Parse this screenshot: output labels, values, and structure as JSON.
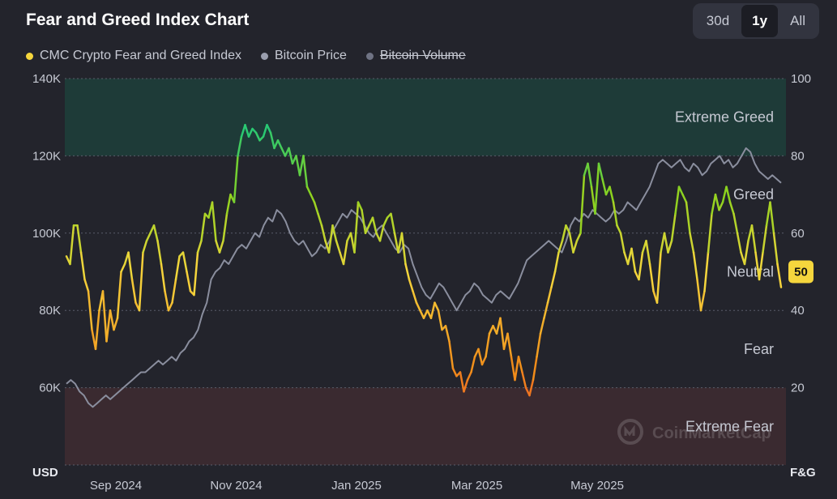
{
  "header": {
    "title": "Fear and Greed Index Chart",
    "ranges": [
      "30d",
      "1y",
      "All"
    ],
    "active_range": "1y"
  },
  "legend": {
    "items": [
      {
        "label": "CMC Crypto Fear and Greed Index",
        "color": "#f5d63d",
        "struck": false
      },
      {
        "label": "Bitcoin Price",
        "color": "#9a9eae",
        "struck": false
      },
      {
        "label": "Bitcoin Volume",
        "color": "#6f7384",
        "struck": true
      }
    ]
  },
  "watermark": "CoinMarketCap",
  "chart_data": {
    "type": "line",
    "x_axis": {
      "tick_labels": [
        "Sep 2024",
        "Nov 2024",
        "Jan 2025",
        "Mar 2025",
        "May 2025"
      ]
    },
    "left_axis": {
      "unit": "USD",
      "ticks": [
        "60K",
        "80K",
        "100K",
        "120K",
        "140K"
      ],
      "tick_values": [
        60000,
        80000,
        100000,
        120000,
        140000
      ],
      "range": [
        40000,
        140000
      ]
    },
    "right_axis": {
      "unit": "F&G",
      "ticks": [
        "20",
        "40",
        "60",
        "80",
        "100"
      ],
      "tick_values": [
        20,
        40,
        60,
        80,
        100
      ],
      "range": [
        0,
        100
      ]
    },
    "zones": [
      {
        "label": "Extreme Greed",
        "from": 80,
        "to": 100,
        "color": "#1e3b38"
      },
      {
        "label": "Greed",
        "from": 60,
        "to": 80
      },
      {
        "label": "Neutral",
        "from": 40,
        "to": 60
      },
      {
        "label": "Fear",
        "from": 20,
        "to": 40
      },
      {
        "label": "Extreme Fear",
        "from": 0,
        "to": 20,
        "color": "#3a2a30"
      }
    ],
    "current_value": "50",
    "series": [
      {
        "name": "CMC Crypto Fear and Greed Index",
        "axis": "right",
        "values": [
          54,
          52,
          62,
          62,
          55,
          48,
          45,
          35,
          30,
          40,
          45,
          32,
          40,
          35,
          38,
          50,
          52,
          55,
          48,
          42,
          40,
          55,
          58,
          60,
          62,
          58,
          52,
          45,
          40,
          42,
          48,
          54,
          55,
          50,
          45,
          44,
          55,
          58,
          65,
          64,
          68,
          58,
          55,
          58,
          65,
          70,
          68,
          80,
          85,
          88,
          85,
          87,
          86,
          84,
          85,
          88,
          86,
          82,
          84,
          82,
          80,
          82,
          78,
          80,
          75,
          80,
          72,
          70,
          68,
          65,
          62,
          58,
          55,
          62,
          58,
          55,
          52,
          58,
          60,
          55,
          68,
          66,
          60,
          62,
          64,
          60,
          58,
          62,
          64,
          65,
          60,
          55,
          60,
          52,
          48,
          45,
          42,
          40,
          38,
          40,
          38,
          42,
          40,
          35,
          36,
          32,
          25,
          23,
          24,
          19,
          22,
          24,
          28,
          30,
          26,
          28,
          34,
          36,
          34,
          38,
          30,
          34,
          28,
          22,
          28,
          24,
          20,
          18,
          22,
          28,
          34,
          38,
          42,
          46,
          50,
          55,
          58,
          62,
          60,
          55,
          58,
          60,
          75,
          78,
          72,
          65,
          78,
          74,
          70,
          72,
          68,
          62,
          60,
          55,
          52,
          56,
          50,
          48,
          55,
          58,
          52,
          45,
          42,
          55,
          60,
          55,
          58,
          65,
          72,
          70,
          68,
          60,
          55,
          48,
          40,
          45,
          55,
          65,
          70,
          66,
          68,
          72,
          68,
          65,
          60,
          55,
          52,
          58,
          62,
          55,
          48,
          55,
          62,
          68,
          60,
          52,
          46
        ],
        "color_scale": [
          {
            "at": 0,
            "color": "#e8233a"
          },
          {
            "at": 25,
            "color": "#f08c1a"
          },
          {
            "at": 50,
            "color": "#f5d63d"
          },
          {
            "at": 70,
            "color": "#8bd21e"
          },
          {
            "at": 90,
            "color": "#16c784"
          }
        ]
      },
      {
        "name": "Bitcoin Price",
        "axis": "left",
        "color": "#8a8e9e",
        "values": [
          61000,
          62000,
          61000,
          59000,
          58000,
          56000,
          55000,
          56000,
          57000,
          58000,
          57000,
          58000,
          59000,
          60000,
          61000,
          62000,
          63000,
          64000,
          64000,
          65000,
          66000,
          67000,
          66000,
          67000,
          68000,
          67000,
          69000,
          70000,
          72000,
          73000,
          75000,
          79000,
          82000,
          88000,
          90000,
          91000,
          93000,
          92000,
          94000,
          96000,
          97000,
          96000,
          98000,
          100000,
          99000,
          102000,
          104000,
          103000,
          106000,
          105000,
          103000,
          100000,
          98000,
          97000,
          98000,
          96000,
          94000,
          95000,
          97000,
          96000,
          98000,
          101000,
          103000,
          105000,
          104000,
          106000,
          105000,
          104000,
          102000,
          100000,
          99000,
          101000,
          102000,
          100000,
          98000,
          96000,
          95000,
          97000,
          96000,
          92000,
          89000,
          86000,
          84000,
          83000,
          85000,
          87000,
          86000,
          84000,
          82000,
          80000,
          82000,
          84000,
          85000,
          87000,
          86000,
          84000,
          83000,
          82000,
          84000,
          85000,
          84000,
          83000,
          85000,
          87000,
          90000,
          93000,
          94000,
          95000,
          96000,
          97000,
          98000,
          97000,
          96000,
          95000,
          98000,
          102000,
          104000,
          103000,
          105000,
          104000,
          106000,
          105000,
          104000,
          103000,
          104000,
          106000,
          105000,
          106000,
          108000,
          107000,
          106000,
          108000,
          110000,
          112000,
          115000,
          118000,
          119000,
          118000,
          117000,
          118000,
          119000,
          117000,
          116000,
          118000,
          117000,
          115000,
          116000,
          118000,
          119000,
          120000,
          118000,
          119000,
          117000,
          118000,
          120000,
          122000,
          121000,
          118000,
          116000,
          115000,
          114000,
          115000,
          114000,
          113000
        ]
      }
    ]
  }
}
